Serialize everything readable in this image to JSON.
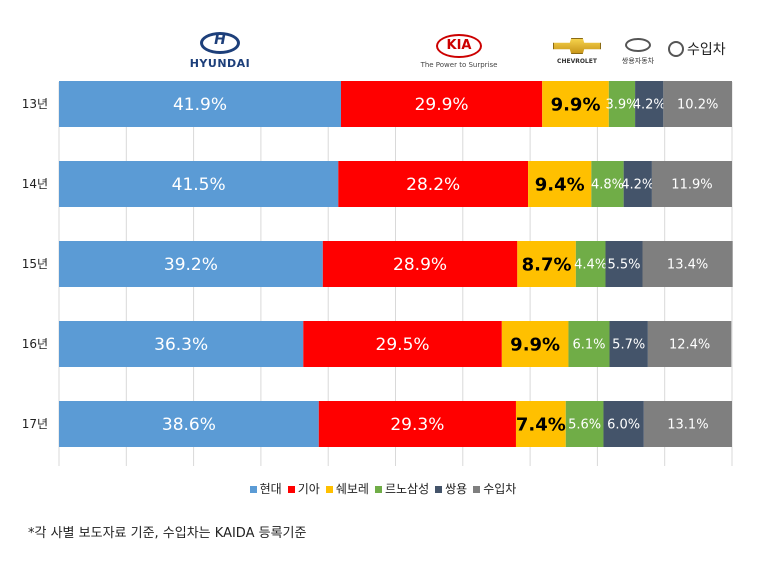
{
  "chart_data": {
    "type": "bar",
    "orientation": "horizontal",
    "stacked": true,
    "title": "",
    "xlabel": "",
    "ylabel": "",
    "xlim": [
      0,
      100
    ],
    "grid": true,
    "legend_position": "bottom",
    "categories": [
      "13년",
      "14년",
      "15년",
      "16년",
      "17년"
    ],
    "series": [
      {
        "name": "현대",
        "color": "#5b9bd5",
        "values": [
          41.9,
          41.5,
          39.2,
          36.3,
          38.6
        ],
        "labels": [
          "41.9%",
          "41.5%",
          "39.2%",
          "36.3%",
          "38.6%"
        ]
      },
      {
        "name": "기아",
        "color": "#ff0000",
        "values": [
          29.9,
          28.2,
          28.9,
          29.5,
          29.3
        ],
        "labels": [
          "29.9%",
          "28.2%",
          "28.9%",
          "29.5%",
          "29.3%"
        ]
      },
      {
        "name": "쉐보레",
        "color": "#ffc000",
        "values": [
          9.9,
          9.4,
          8.7,
          9.9,
          7.4
        ],
        "labels": [
          "9.9%",
          "9.4%",
          "8.7%",
          "9.9%",
          "7.4%"
        ]
      },
      {
        "name": "르노삼성",
        "color": "#70ad47",
        "values": [
          3.9,
          4.8,
          4.4,
          6.1,
          5.6
        ],
        "labels": [
          "3.9%",
          "4.8%",
          "4.4%",
          "6.1%",
          "5.6%"
        ]
      },
      {
        "name": "쌍용",
        "color": "#44546a",
        "values": [
          4.2,
          4.2,
          5.5,
          5.7,
          6.0
        ],
        "labels": [
          "4.2%",
          "4.2%",
          "5.5%",
          "5.7%",
          "6.0%"
        ]
      },
      {
        "name": "수입차",
        "color": "#7f7f7f",
        "values": [
          10.2,
          11.9,
          13.4,
          12.4,
          13.1
        ],
        "labels": [
          "10.2%",
          "11.9%",
          "13.4%",
          "12.4%",
          "13.1%"
        ]
      }
    ]
  },
  "brands": {
    "hyundai": "HYUNDAI",
    "kia_logo": "KIA",
    "kia_tagline": "The Power to Surprise",
    "chevrolet": "CHEVROLET",
    "ssangyong": "쌍용자동차",
    "import": "수입차"
  },
  "footnote": "*각 사별 보도자료 기준, 수입차는 KAIDA 등록기준"
}
